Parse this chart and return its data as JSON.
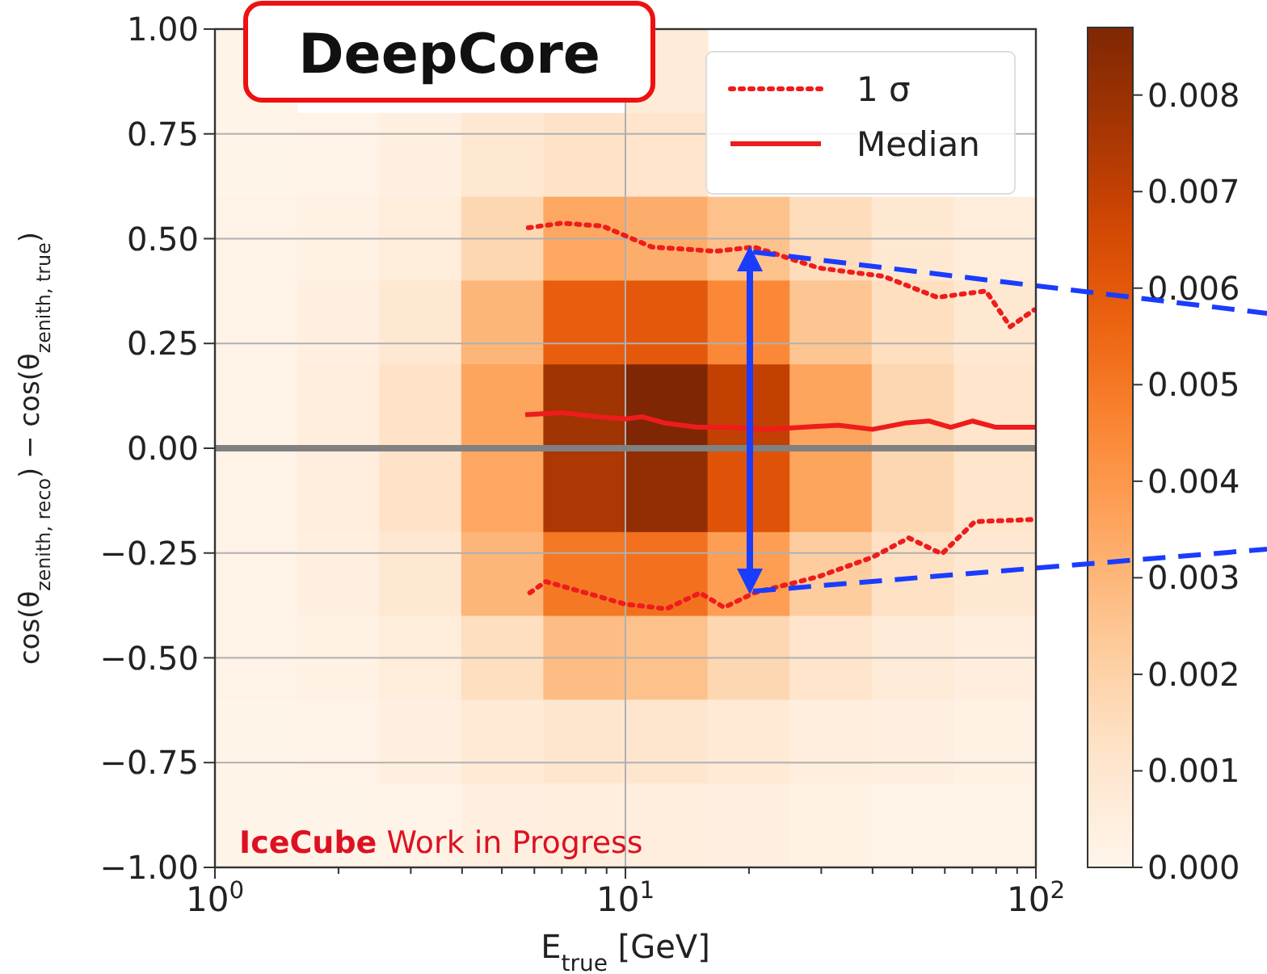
{
  "chart_data": [
    {
      "type": "heatmap",
      "categories": [
        null,
        null,
        null,
        null,
        null,
        null,
        null,
        null,
        null,
        null
      ],
      "y_categories": [
        null,
        null,
        null,
        null,
        null,
        null,
        null,
        null,
        null,
        null
      ],
      "cells": [
        [
          0.0001,
          null,
          null,
          null,
          null,
          0.0007,
          null,
          null,
          null,
          null
        ],
        [
          0.0001,
          0.0002,
          0.0004,
          0.0009,
          0.0012,
          0.0011,
          null,
          null,
          null,
          null
        ],
        [
          0.0002,
          0.0003,
          0.0006,
          0.0018,
          0.0035,
          0.0033,
          0.0026,
          0.0015,
          0.0009,
          0.0006
        ],
        [
          0.0002,
          0.0004,
          0.0009,
          0.003,
          0.0058,
          0.006,
          0.0045,
          0.0025,
          0.0014,
          0.0009
        ],
        [
          0.0002,
          0.0005,
          0.0012,
          0.0036,
          0.0078,
          0.0087,
          0.007,
          0.0036,
          0.0018,
          0.0011
        ],
        [
          0.0002,
          0.0005,
          0.0012,
          0.0035,
          0.0075,
          0.0082,
          0.0062,
          0.0036,
          0.0018,
          0.0011
        ],
        [
          0.0002,
          0.0004,
          0.0009,
          0.003,
          0.005,
          0.0052,
          0.0038,
          0.0022,
          0.0013,
          0.0009
        ],
        [
          0.0002,
          0.0003,
          0.0006,
          0.0014,
          0.0028,
          0.0026,
          0.0018,
          0.0011,
          0.0007,
          0.0005
        ],
        [
          0.0001,
          0.0002,
          0.0004,
          0.0008,
          0.001,
          0.001,
          0.0008,
          0.0005,
          0.0004,
          0.0003
        ],
        [
          0.0001,
          0.0001,
          0.0002,
          0.0004,
          0.0005,
          0.0005,
          0.0004,
          0.0003,
          0.0002,
          0.0002
        ]
      ],
      "clim": [
        0,
        0.0087
      ],
      "cticks": [
        {
          "value": 0,
          "label": "0.000"
        },
        {
          "value": 0.001,
          "label": "0.001"
        },
        {
          "value": 0.002,
          "label": "0.002"
        },
        {
          "value": 0.003,
          "label": "0.003"
        },
        {
          "value": 0.004,
          "label": "0.004"
        },
        {
          "value": 0.005,
          "label": "0.005"
        },
        {
          "value": 0.006,
          "label": "0.006"
        },
        {
          "value": 0.007,
          "label": "0.007"
        },
        {
          "value": 0.008,
          "label": "0.008"
        }
      ]
    },
    {
      "type": "line",
      "title": "DeepCore",
      "xlabel": "E$_{true}$ [GeV]",
      "ylabel": "cos(θ$_{zenith, reco}$) − cos(θ$_{zenith, true}$)",
      "annotations": [
        "IceCube Work in Progress"
      ],
      "log": "x",
      "xlim": [
        1,
        100
      ],
      "xticks": [
        {
          "value": 1,
          "label": "10$^{0}$"
        },
        {
          "value": 2,
          "label": null
        },
        {
          "value": 3,
          "label": null
        },
        {
          "value": 4,
          "label": null
        },
        {
          "value": 5,
          "label": null
        },
        {
          "value": 6,
          "label": null
        },
        {
          "value": 7,
          "label": null
        },
        {
          "value": 8,
          "label": null
        },
        {
          "value": 9,
          "label": null
        },
        {
          "value": 10,
          "label": "10$^{1}$"
        },
        {
          "value": 20,
          "label": null
        },
        {
          "value": 30,
          "label": null
        },
        {
          "value": 40,
          "label": null
        },
        {
          "value": 50,
          "label": null
        },
        {
          "value": 60,
          "label": null
        },
        {
          "value": 70,
          "label": null
        },
        {
          "value": 80,
          "label": null
        },
        {
          "value": 90,
          "label": null
        },
        {
          "value": 100,
          "label": "10$^{2}$"
        }
      ],
      "ylim": [
        -1,
        1
      ],
      "yticks": [
        {
          "value": -1,
          "label": "−1.00"
        },
        {
          "value": -0.75,
          "label": "−0.75"
        },
        {
          "value": -0.5,
          "label": "−0.50"
        },
        {
          "value": -0.25,
          "label": "−0.25"
        },
        {
          "value": 0,
          "label": "0.00"
        },
        {
          "value": 0.25,
          "label": "0.25"
        },
        {
          "value": 0.5,
          "label": "0.50"
        },
        {
          "value": 0.75,
          "label": "0.75"
        },
        {
          "value": 1,
          "label": "1.00"
        }
      ],
      "grid": true,
      "legend": "top right",
      "ref_lines": [
        {
          "axis": "y",
          "value": 0,
          "color": "#808080"
        }
      ],
      "series": [
        {
          "name": "1 σ",
          "color": "#ee1c1c",
          "line_style": "dotted",
          "x": [
            5.8,
            7.0,
            8.8,
            11.6,
            16.6,
            20.6,
            29.6,
            42.6,
            57.5,
            75.6,
            86.6,
            99
          ],
          "values": [
            0.526,
            0.537,
            0.53,
            0.48,
            0.47,
            0.48,
            0.43,
            0.41,
            0.36,
            0.375,
            0.29,
            0.33
          ]
        },
        {
          "name": "Median",
          "color": "#ee1c1c",
          "line_style": "solid",
          "x": [
            5.7,
            7,
            8.5,
            10,
            11,
            12.5,
            15,
            18,
            22,
            27,
            33,
            40,
            48,
            55,
            62,
            70,
            80,
            90,
            100
          ],
          "values": [
            0.08,
            0.085,
            0.075,
            0.07,
            0.075,
            0.06,
            0.05,
            0.05,
            0.045,
            0.05,
            0.055,
            0.045,
            0.06,
            0.065,
            0.05,
            0.065,
            0.05,
            0.05,
            0.05
          ]
        },
        {
          "color": "#ee1c1c",
          "line_style": "dotted",
          "x": [
            5.85,
            6.4,
            10,
            12.6,
            15.2,
            17.4,
            20.6,
            29.6,
            40,
            49,
            59,
            71,
            99
          ],
          "values": [
            -0.345,
            -0.318,
            -0.372,
            -0.383,
            -0.345,
            -0.38,
            -0.345,
            -0.306,
            -0.26,
            -0.214,
            -0.252,
            -0.175,
            -0.17
          ]
        }
      ]
    }
  ]
}
